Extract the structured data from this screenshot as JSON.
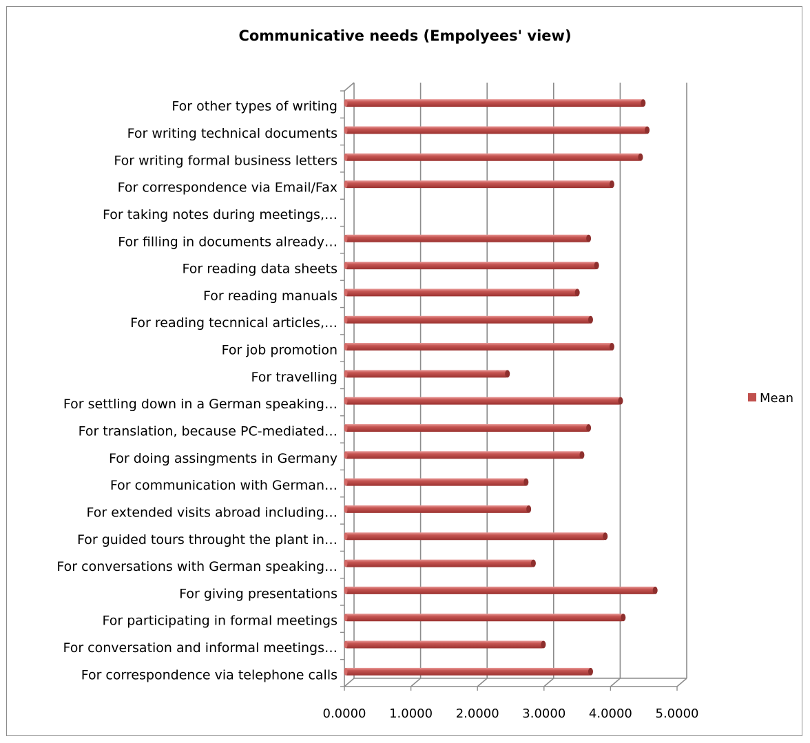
{
  "chart_data": {
    "type": "bar",
    "orientation": "horizontal",
    "title": "Communicative needs (Empolyees' view)",
    "categories": [
      "For other types of writing",
      "For writing technical documents",
      "For writing formal business letters",
      "For correspondence via Email/Fax",
      "For taking notes during meetings,…",
      "For filling in documents already…",
      "For reading data sheets",
      "For reading manuals",
      "For reading tecnnical articles,…",
      "For job promotion",
      "For travelling",
      "For settling down in a German speaking…",
      "For translation, because PC-mediated…",
      "For doing assingments in Germany",
      "For communication with German…",
      "For extended visits abroad including…",
      "For guided tours throught the plant in…",
      "For conversations with German speaking…",
      "For giving presentations",
      "For participating in formal meetings",
      "For conversation and informal meetings…",
      "For correspondence via telephone calls"
    ],
    "series": [
      {
        "name": "Mean",
        "color": "#c0504d",
        "values": [
          4.47,
          4.53,
          4.43,
          4.0,
          null,
          3.65,
          3.77,
          3.48,
          3.68,
          4.0,
          2.43,
          4.13,
          3.65,
          3.55,
          2.71,
          2.75,
          3.9,
          2.82,
          4.65,
          4.17,
          2.97,
          3.68
        ]
      }
    ],
    "xlim": [
      0,
      5
    ],
    "xticks": [
      "0.0000",
      "1.0000",
      "2.0000",
      "3.0000",
      "4.0000",
      "5.0000"
    ],
    "xlabel": "",
    "ylabel": "",
    "grid": "vertical",
    "legend": "right"
  }
}
